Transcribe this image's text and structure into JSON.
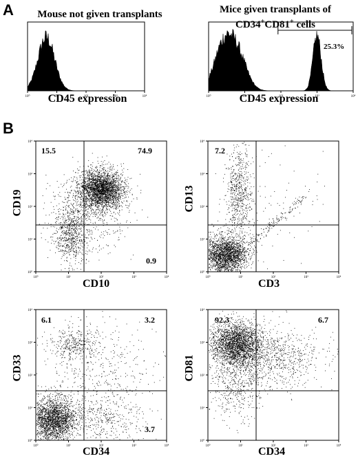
{
  "panelA": {
    "letter": "A",
    "left": {
      "title": "Mouse not given transplants",
      "xlabel": "CD45 expression"
    },
    "right": {
      "title_line1": "Mice given transplants of",
      "title_line2_parts": [
        "CD34",
        "+",
        "CD81",
        "+",
        " cells"
      ],
      "xlabel": "CD45 expression",
      "gate_percent": "25.3%"
    },
    "x_ticks": [
      "10⁰",
      "10¹",
      "10²",
      "10³",
      "10⁴"
    ]
  },
  "panelB": {
    "letter": "B",
    "plots": [
      {
        "id": "cd10-cd19",
        "xlabel": "CD10",
        "ylabel": "CD19",
        "quadrants": {
          "ul": "15.5",
          "ur": "74.9",
          "lr": "0.9"
        }
      },
      {
        "id": "cd3-cd13",
        "xlabel": "CD3",
        "ylabel": "CD13",
        "quadrants": {
          "ul": "7.2"
        }
      },
      {
        "id": "cd34-cd33",
        "xlabel": "CD34",
        "ylabel": "CD33",
        "quadrants": {
          "ul": "6.1",
          "ur": "3.2",
          "lr": "3.7"
        }
      },
      {
        "id": "cd34-cd81",
        "xlabel": "CD34",
        "ylabel": "CD81",
        "quadrants": {
          "ul": "92.3",
          "ur": "6.7"
        }
      }
    ]
  }
}
